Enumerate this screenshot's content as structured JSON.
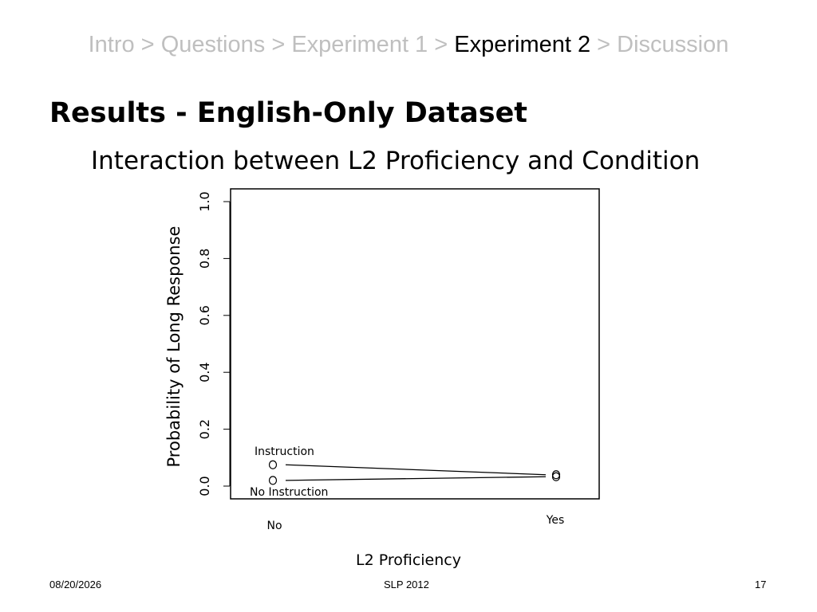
{
  "breadcrumb": {
    "items": [
      {
        "label": "Intro",
        "current": false
      },
      {
        "label": "Questions",
        "current": false
      },
      {
        "label": "Experiment 1",
        "current": false
      },
      {
        "label": "Experiment 2",
        "current": true
      },
      {
        "label": "Discussion",
        "current": false
      }
    ],
    "separator": ">"
  },
  "slide": {
    "title": "Results - English-Only Dataset",
    "subtitle": "Interaction between L2 Proficiency and Condition"
  },
  "chart_data": {
    "type": "line",
    "title": "Interaction between L2 Proficiency and Condition",
    "xlabel": "L2 Proficiency",
    "ylabel": "Probability of Long Response",
    "categories": [
      "No",
      "Yes"
    ],
    "ylim": [
      0,
      1.0
    ],
    "yticks": [
      "0.0",
      "0.2",
      "0.4",
      "0.6",
      "0.8",
      "1.0"
    ],
    "series": [
      {
        "name": "Instruction",
        "values": [
          0.075,
          0.04
        ]
      },
      {
        "name": "No Instruction",
        "values": [
          0.02,
          0.033
        ]
      }
    ],
    "marker": "O",
    "grid": false,
    "line_color": "#000000"
  },
  "footer": {
    "date": "08/20/2026",
    "center": "SLP 2012",
    "page": "17"
  }
}
